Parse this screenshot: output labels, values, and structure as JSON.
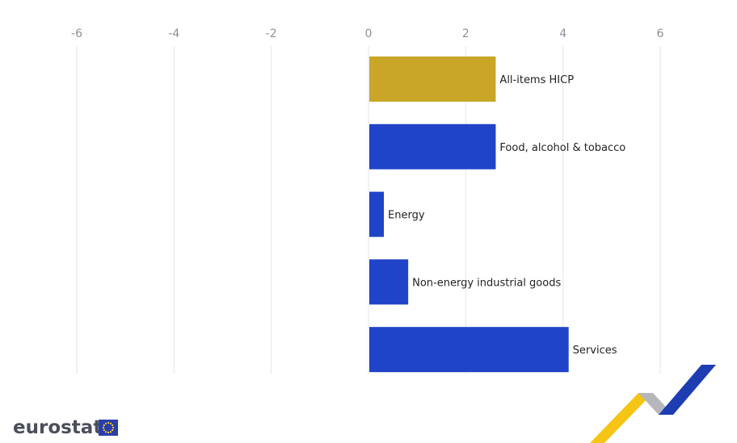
{
  "chart_data": {
    "type": "bar",
    "orientation": "horizontal",
    "categories": [
      "All-items HICP",
      "Food, alcohol & tobacco",
      "Energy",
      "Non-energy industrial goods",
      "Services"
    ],
    "values": [
      2.6,
      2.6,
      0.3,
      0.8,
      4.1
    ],
    "colors": [
      "#c9a628",
      "#1f44c8",
      "#1f44c8",
      "#1f44c8",
      "#1f44c8"
    ],
    "xlim": [
      -6,
      6
    ],
    "xticks": [
      "-6",
      "-4",
      "-2",
      "0",
      "2",
      "4",
      "6"
    ],
    "title": "",
    "xlabel": "",
    "ylabel": "",
    "grid": true
  },
  "branding": {
    "logo_text": "eurostat",
    "logo_color": "#4a4f5a",
    "flag_color": "#2a3ea9",
    "flag_star_color": "#f7d320"
  },
  "decoration": {
    "ribbon_yellow": "#f5c516",
    "ribbon_grey": "#b5b7bc",
    "ribbon_blue": "#1e3db3"
  }
}
